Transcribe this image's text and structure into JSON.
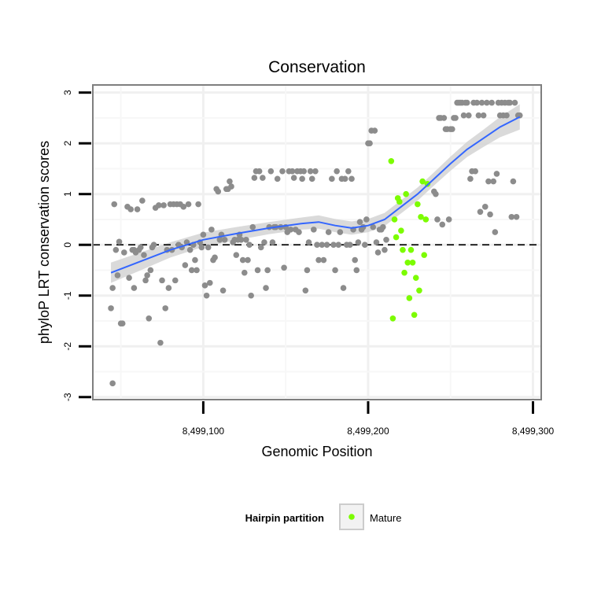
{
  "chart_data": {
    "type": "scatter",
    "title": "Conservation",
    "xlabel": "Genomic Position",
    "ylabel": "phyloP LRT conservation scores",
    "xlim": [
      8499033,
      8499305
    ],
    "ylim": [
      -3.05,
      3.15
    ],
    "x_ticks": [
      {
        "value": 8499100,
        "label": "8,499,100"
      },
      {
        "value": 8499200,
        "label": "8,499,200"
      },
      {
        "value": 8499300,
        "label": "8,499,300"
      }
    ],
    "y_ticks": [
      {
        "value": 3,
        "label": "3"
      },
      {
        "value": 2,
        "label": "2"
      },
      {
        "value": 1,
        "label": "1"
      },
      {
        "value": 0,
        "label": "0"
      },
      {
        "value": -1,
        "label": "-1"
      },
      {
        "value": -2,
        "label": "-2"
      },
      {
        "value": -3,
        "label": "-3"
      }
    ],
    "grid": true,
    "reference_line": {
      "y": 0,
      "style": "dashed"
    },
    "legend": {
      "title": "Hairpin partition",
      "placement": "bottom",
      "entries": [
        "Mature"
      ]
    },
    "colors": {
      "other": "#8c8c8c",
      "mature": "#7cfc00",
      "smooth": "#3366ff",
      "band": "#d3d3d3"
    },
    "series": [
      {
        "values": [
          [
            8499044,
            -1.25
          ],
          [
            8499045,
            -0.85
          ],
          [
            8499045,
            -2.73
          ],
          [
            8499046,
            0.8
          ],
          [
            8499047,
            -0.1
          ],
          [
            8499048,
            -0.6
          ],
          [
            8499049,
            0.06
          ],
          [
            8499050,
            -1.55
          ],
          [
            8499051,
            -1.55
          ],
          [
            8499052,
            -0.15
          ],
          [
            8499054,
            0.75
          ],
          [
            8499055,
            -0.65
          ],
          [
            8499056,
            0.7
          ],
          [
            8499057,
            -0.1
          ],
          [
            8499058,
            -0.85
          ],
          [
            8499058,
            -0.1
          ],
          [
            8499059,
            -0.15
          ],
          [
            8499060,
            0.7
          ],
          [
            8499061,
            -0.1
          ],
          [
            8499062,
            -0.05
          ],
          [
            8499063,
            0.87
          ],
          [
            8499064,
            -0.2
          ],
          [
            8499065,
            -0.7
          ],
          [
            8499066,
            -0.6
          ],
          [
            8499067,
            -1.45
          ],
          [
            8499068,
            -0.5
          ],
          [
            8499069,
            -0.05
          ],
          [
            8499070,
            0.0
          ],
          [
            8499071,
            0.73
          ],
          [
            8499073,
            0.78
          ],
          [
            8499074,
            -1.93
          ],
          [
            8499075,
            -0.7
          ],
          [
            8499076,
            0.78
          ],
          [
            8499077,
            -1.25
          ],
          [
            8499078,
            -0.1
          ],
          [
            8499079,
            -0.85
          ],
          [
            8499080,
            0.8
          ],
          [
            8499081,
            -0.1
          ],
          [
            8499082,
            0.8
          ],
          [
            8499083,
            -0.7
          ],
          [
            8499084,
            0.8
          ],
          [
            8499085,
            0.0
          ],
          [
            8499086,
            0.8
          ],
          [
            8499087,
            -0.05
          ],
          [
            8499088,
            0.75
          ],
          [
            8499089,
            -0.4
          ],
          [
            8499090,
            0.05
          ],
          [
            8499091,
            0.8
          ],
          [
            8499092,
            -0.1
          ],
          [
            8499093,
            -0.5
          ],
          [
            8499094,
            0.0
          ],
          [
            8499095,
            -0.3
          ],
          [
            8499096,
            -0.5
          ],
          [
            8499097,
            0.8
          ],
          [
            8499098,
            0.05
          ],
          [
            8499099,
            -0.05
          ],
          [
            8499100,
            0.2
          ],
          [
            8499101,
            -0.8
          ],
          [
            8499102,
            -1.0
          ],
          [
            8499103,
            -0.05
          ],
          [
            8499104,
            -0.75
          ],
          [
            8499105,
            0.3
          ],
          [
            8499106,
            -0.3
          ],
          [
            8499107,
            -0.25
          ],
          [
            8499108,
            1.1
          ],
          [
            8499109,
            1.05
          ],
          [
            8499110,
            0.1
          ],
          [
            8499111,
            0.2
          ],
          [
            8499112,
            -0.9
          ],
          [
            8499113,
            0.1
          ],
          [
            8499114,
            1.1
          ],
          [
            8499115,
            1.1
          ],
          [
            8499116,
            1.25
          ],
          [
            8499117,
            1.15
          ],
          [
            8499118,
            0.05
          ],
          [
            8499119,
            0.1
          ],
          [
            8499120,
            -0.2
          ],
          [
            8499121,
            0.1
          ],
          [
            8499122,
            0.2
          ],
          [
            8499123,
            0.1
          ],
          [
            8499124,
            -0.3
          ],
          [
            8499125,
            -0.55
          ],
          [
            8499126,
            0.1
          ],
          [
            8499127,
            -0.3
          ],
          [
            8499128,
            0.0
          ],
          [
            8499129,
            -1.0
          ],
          [
            8499130,
            0.35
          ],
          [
            8499131,
            1.32
          ],
          [
            8499132,
            1.45
          ],
          [
            8499133,
            -0.5
          ],
          [
            8499134,
            1.45
          ],
          [
            8499135,
            -0.05
          ],
          [
            8499136,
            1.32
          ],
          [
            8499137,
            0.05
          ],
          [
            8499138,
            -0.85
          ],
          [
            8499139,
            -0.5
          ],
          [
            8499140,
            0.35
          ],
          [
            8499141,
            1.45
          ],
          [
            8499142,
            0.05
          ],
          [
            8499143,
            0.35
          ],
          [
            8499144,
            0.35
          ],
          [
            8499145,
            1.3
          ],
          [
            8499147,
            0.35
          ],
          [
            8499148,
            1.45
          ],
          [
            8499149,
            -0.45
          ],
          [
            8499150,
            0.35
          ],
          [
            8499151,
            0.25
          ],
          [
            8499152,
            1.45
          ],
          [
            8499153,
            0.3
          ],
          [
            8499154,
            1.45
          ],
          [
            8499155,
            1.32
          ],
          [
            8499156,
            0.3
          ],
          [
            8499157,
            1.45
          ],
          [
            8499158,
            0.25
          ],
          [
            8499159,
            1.45
          ],
          [
            8499160,
            1.3
          ],
          [
            8499161,
            1.45
          ],
          [
            8499162,
            -0.9
          ],
          [
            8499163,
            -0.5
          ],
          [
            8499164,
            0.05
          ],
          [
            8499165,
            1.45
          ],
          [
            8499166,
            1.3
          ],
          [
            8499167,
            0.3
          ],
          [
            8499168,
            1.45
          ],
          [
            8499169,
            0.0
          ],
          [
            8499170,
            -0.3
          ],
          [
            8499172,
            0.0
          ],
          [
            8499173,
            -0.3
          ],
          [
            8499175,
            0.0
          ],
          [
            8499176,
            0.25
          ],
          [
            8499178,
            1.3
          ],
          [
            8499179,
            0.0
          ],
          [
            8499180,
            -0.5
          ],
          [
            8499181,
            1.45
          ],
          [
            8499182,
            0.0
          ],
          [
            8499183,
            0.25
          ],
          [
            8499184,
            1.3
          ],
          [
            8499185,
            -0.85
          ],
          [
            8499186,
            1.3
          ],
          [
            8499187,
            0.0
          ],
          [
            8499188,
            1.45
          ],
          [
            8499189,
            0.0
          ],
          [
            8499190,
            1.3
          ],
          [
            8499191,
            0.3
          ],
          [
            8499192,
            -0.3
          ],
          [
            8499193,
            -0.5
          ],
          [
            8499194,
            0.05
          ],
          [
            8499195,
            0.45
          ],
          [
            8499196,
            0.3
          ],
          [
            8499197,
            0.35
          ],
          [
            8499198,
            0.0
          ],
          [
            8499199,
            0.5
          ],
          [
            8499200,
            2.0
          ],
          [
            8499201,
            2.0
          ],
          [
            8499202,
            2.25
          ],
          [
            8499203,
            0.35
          ],
          [
            8499204,
            2.25
          ],
          [
            8499205,
            0.05
          ],
          [
            8499206,
            -0.15
          ],
          [
            8499207,
            0.3
          ],
          [
            8499208,
            0.3
          ],
          [
            8499209,
            0.35
          ],
          [
            8499210,
            -0.1
          ],
          [
            8499211,
            0.1
          ],
          [
            8499240,
            1.05
          ],
          [
            8499241,
            1.0
          ],
          [
            8499242,
            0.5
          ],
          [
            8499243,
            2.5
          ],
          [
            8499244,
            2.5
          ],
          [
            8499245,
            0.4
          ],
          [
            8499246,
            2.5
          ],
          [
            8499247,
            2.28
          ],
          [
            8499248,
            2.28
          ],
          [
            8499249,
            0.5
          ],
          [
            8499250,
            2.28
          ],
          [
            8499251,
            2.28
          ],
          [
            8499252,
            2.5
          ],
          [
            8499253,
            2.5
          ],
          [
            8499254,
            2.8
          ],
          [
            8499255,
            2.8
          ],
          [
            8499256,
            2.8
          ],
          [
            8499257,
            2.8
          ],
          [
            8499258,
            2.55
          ],
          [
            8499259,
            2.8
          ],
          [
            8499260,
            2.8
          ],
          [
            8499261,
            2.55
          ],
          [
            8499262,
            1.3
          ],
          [
            8499263,
            1.45
          ],
          [
            8499264,
            2.8
          ],
          [
            8499265,
            1.45
          ],
          [
            8499266,
            2.8
          ],
          [
            8499267,
            2.55
          ],
          [
            8499268,
            0.65
          ],
          [
            8499269,
            2.8
          ],
          [
            8499270,
            2.55
          ],
          [
            8499271,
            0.75
          ],
          [
            8499272,
            2.8
          ],
          [
            8499273,
            1.25
          ],
          [
            8499274,
            0.6
          ],
          [
            8499275,
            2.8
          ],
          [
            8499276,
            1.25
          ],
          [
            8499277,
            0.25
          ],
          [
            8499278,
            1.4
          ],
          [
            8499279,
            2.8
          ],
          [
            8499280,
            2.55
          ],
          [
            8499281,
            2.8
          ],
          [
            8499282,
            2.55
          ],
          [
            8499283,
            2.8
          ],
          [
            8499284,
            2.55
          ],
          [
            8499285,
            2.8
          ],
          [
            8499286,
            2.8
          ],
          [
            8499287,
            0.55
          ],
          [
            8499288,
            1.25
          ],
          [
            8499289,
            2.8
          ],
          [
            8499290,
            0.55
          ],
          [
            8499291,
            2.55
          ],
          [
            8499292,
            2.55
          ]
        ]
      },
      {
        "name": "Mature",
        "values": [
          [
            8499214,
            1.65
          ],
          [
            8499215,
            -1.45
          ],
          [
            8499216,
            0.5
          ],
          [
            8499217,
            0.15
          ],
          [
            8499218,
            0.92
          ],
          [
            8499219,
            0.85
          ],
          [
            8499220,
            0.28
          ],
          [
            8499221,
            -0.1
          ],
          [
            8499222,
            -0.55
          ],
          [
            8499223,
            1.0
          ],
          [
            8499224,
            -0.35
          ],
          [
            8499225,
            -1.05
          ],
          [
            8499226,
            -0.1
          ],
          [
            8499227,
            -0.35
          ],
          [
            8499228,
            -1.38
          ],
          [
            8499229,
            -0.65
          ],
          [
            8499230,
            0.8
          ],
          [
            8499231,
            -0.9
          ],
          [
            8499232,
            0.55
          ],
          [
            8499233,
            1.25
          ],
          [
            8499234,
            -0.2
          ],
          [
            8499235,
            0.5
          ],
          [
            8499236,
            1.2
          ]
        ]
      },
      {
        "name": "smooth",
        "type": "line",
        "values": [
          [
            8499044,
            -0.55
          ],
          [
            8499060,
            -0.35
          ],
          [
            8499080,
            -0.1
          ],
          [
            8499100,
            0.1
          ],
          [
            8499120,
            0.22
          ],
          [
            8499140,
            0.33
          ],
          [
            8499160,
            0.42
          ],
          [
            8499170,
            0.45
          ],
          [
            8499180,
            0.38
          ],
          [
            8499190,
            0.33
          ],
          [
            8499200,
            0.38
          ],
          [
            8499210,
            0.5
          ],
          [
            8499220,
            0.75
          ],
          [
            8499230,
            1.0
          ],
          [
            8499240,
            1.3
          ],
          [
            8499250,
            1.6
          ],
          [
            8499260,
            1.88
          ],
          [
            8499270,
            2.1
          ],
          [
            8499280,
            2.32
          ],
          [
            8499292,
            2.52
          ]
        ],
        "band": [
          [
            0.2
          ],
          [
            0.18
          ],
          [
            0.15
          ],
          [
            0.14
          ],
          [
            0.13
          ],
          [
            0.12
          ],
          [
            0.12
          ],
          [
            0.13
          ],
          [
            0.13
          ],
          [
            0.13
          ],
          [
            0.13
          ],
          [
            0.13
          ],
          [
            0.13
          ],
          [
            0.13
          ],
          [
            0.13
          ],
          [
            0.14
          ],
          [
            0.15
          ],
          [
            0.17
          ],
          [
            0.2
          ],
          [
            0.25
          ]
        ]
      }
    ]
  }
}
